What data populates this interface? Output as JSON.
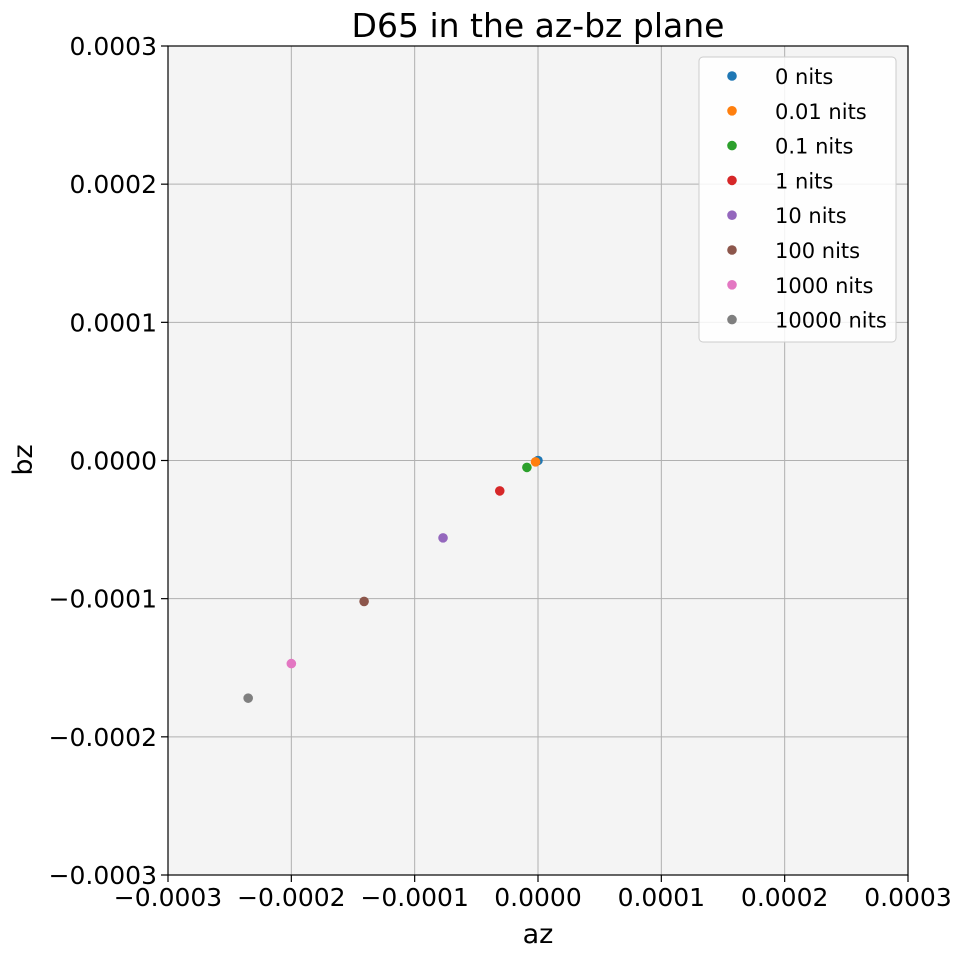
{
  "chart_data": {
    "type": "scatter",
    "title": "D65 in the az-bz plane",
    "xlabel": "az",
    "ylabel": "bz",
    "xlim": [
      -0.0003,
      0.0003
    ],
    "ylim": [
      -0.0003,
      0.0003
    ],
    "xticks": [
      -0.0003,
      -0.0002,
      -0.0001,
      0.0,
      0.0001,
      0.0002,
      0.0003
    ],
    "yticks": [
      -0.0003,
      -0.0002,
      -0.0001,
      0.0,
      0.0001,
      0.0002,
      0.0003
    ],
    "xtick_labels": [
      "−0.0003",
      "−0.0002",
      "−0.0001",
      "0.0000",
      "0.0001",
      "0.0002",
      "0.0003"
    ],
    "ytick_labels": [
      "−0.0003",
      "−0.0002",
      "−0.0001",
      "0.0000",
      "0.0001",
      "0.0002",
      "0.0003"
    ],
    "grid": true,
    "legend_position": "top-right",
    "background": "#f4f4f4",
    "series": [
      {
        "name": "0 nits",
        "color": "#1f77b4",
        "x": 0.0,
        "y": 0.0
      },
      {
        "name": "0.01 nits",
        "color": "#ff7f0e",
        "x": -2e-06,
        "y": -1e-06
      },
      {
        "name": "0.1 nits",
        "color": "#2ca02c",
        "x": -9e-06,
        "y": -5e-06
      },
      {
        "name": "1 nits",
        "color": "#d62728",
        "x": -3.1e-05,
        "y": -2.2e-05
      },
      {
        "name": "10 nits",
        "color": "#9467bd",
        "x": -7.7e-05,
        "y": -5.6e-05
      },
      {
        "name": "100 nits",
        "color": "#8c564b",
        "x": -0.000141,
        "y": -0.000102
      },
      {
        "name": "1000 nits",
        "color": "#e377c2",
        "x": -0.0002,
        "y": -0.000147
      },
      {
        "name": "10000 nits",
        "color": "#7f7f7f",
        "x": -0.000235,
        "y": -0.000172
      }
    ]
  }
}
